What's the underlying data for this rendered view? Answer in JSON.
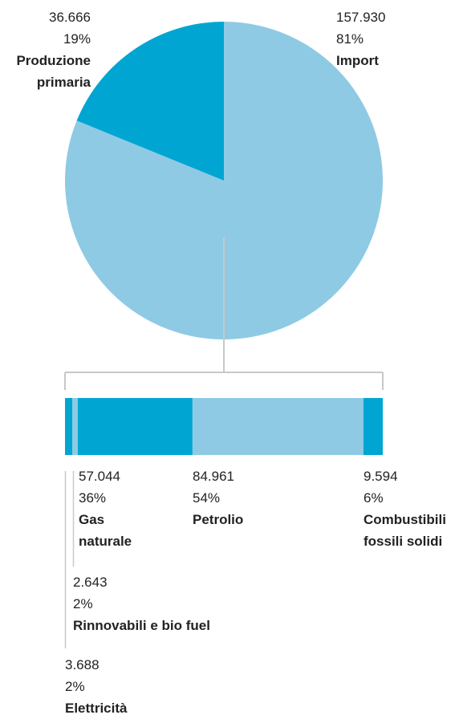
{
  "chart_data": [
    {
      "type": "pie",
      "slices": [
        {
          "label": "Produzione primaria",
          "value": 36.666,
          "value_text": "36.666",
          "percent_text": "19%",
          "color": "#00a6d1"
        },
        {
          "label": "Import",
          "value": 157.93,
          "value_text": "157.930",
          "percent_text": "81%",
          "color": "#8ecae4"
        }
      ]
    },
    {
      "type": "bar",
      "orientation": "horizontal-stacked",
      "breakdown_of": "Import",
      "segments": [
        {
          "label": "Elettricità",
          "value": 3.688,
          "value_text": "3.688",
          "percent_text": "2%",
          "color": "#00a6d1"
        },
        {
          "label": "Rinnovabili e bio fuel",
          "value": 2.643,
          "value_text": "2.643",
          "percent_text": "2%",
          "color": "#8ecae4"
        },
        {
          "label": "Gas naturale",
          "value": 57.044,
          "value_text": "57.044",
          "percent_text": "36%",
          "color": "#00a6d1"
        },
        {
          "label": "Petrolio",
          "value": 84.961,
          "value_text": "84.961",
          "percent_text": "54%",
          "color": "#8ecae4"
        },
        {
          "label": "Combustibili fossili solidi",
          "value": 9.594,
          "value_text": "9.594",
          "percent_text": "6%",
          "color": "#00a6d1"
        }
      ]
    }
  ],
  "labels": {
    "produzione": {
      "value": "36.666",
      "pct": "19%",
      "name1": "Produzione",
      "name2": "primaria"
    },
    "import": {
      "value": "157.930",
      "pct": "81%",
      "name1": "Import"
    },
    "gas": {
      "value": "57.044",
      "pct": "36%",
      "name1": "Gas",
      "name2": "naturale"
    },
    "petrolio": {
      "value": "84.961",
      "pct": "54%",
      "name1": "Petrolio"
    },
    "solidi": {
      "value": "9.594",
      "pct": "6%",
      "name1": "Combustibili",
      "name2": "fossili solidi"
    },
    "rinnovabili": {
      "value": "2.643",
      "pct": "2%",
      "name1": "Rinnovabili e bio fuel"
    },
    "elettricita": {
      "value": "3.688",
      "pct": "2%",
      "name1": "Elettricità"
    }
  },
  "colors": {
    "dark": "#00a6d1",
    "light": "#8ecae4",
    "connector": "#c8c8c8"
  }
}
